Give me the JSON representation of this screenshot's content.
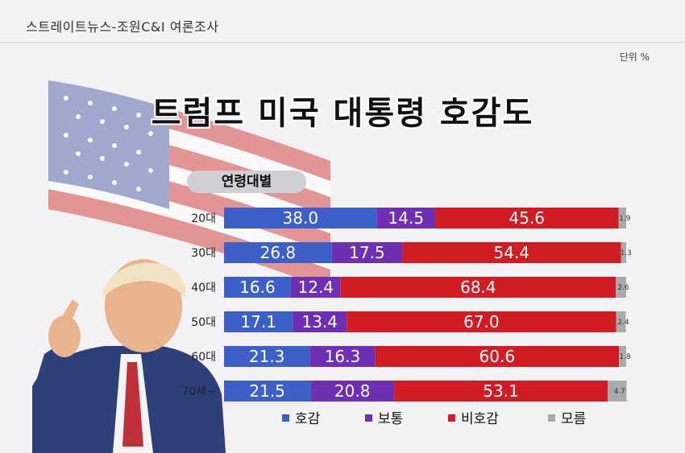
{
  "source": "스트레이트뉴스-조원C&I 여론조사",
  "unit": "단위 %",
  "title": "트럼프 미국 대통령 호감도",
  "group_label": "연령대별",
  "colors": {
    "favorable": "#3d5fc8",
    "neutral": "#6f2fb3",
    "unfavorable": "#d21c24",
    "unknown": "#aaaaaa"
  },
  "chart_data": {
    "type": "bar",
    "stacked": true,
    "orientation": "horizontal",
    "title": "트럼프 미국 대통령 호감도",
    "categories": [
      "20대",
      "30대",
      "40대",
      "50대",
      "60대",
      "70세~"
    ],
    "series": [
      {
        "name": "호감",
        "values": [
          38.0,
          26.8,
          16.6,
          17.1,
          21.3,
          21.5
        ]
      },
      {
        "name": "보통",
        "values": [
          14.5,
          17.5,
          12.4,
          13.4,
          16.3,
          20.8
        ]
      },
      {
        "name": "비호감",
        "values": [
          45.6,
          54.4,
          68.4,
          67.0,
          60.6,
          53.1
        ]
      },
      {
        "name": "모름",
        "values": [
          1.9,
          1.3,
          2.6,
          2.4,
          1.8,
          4.7
        ]
      }
    ],
    "xlim": [
      0,
      100
    ],
    "legend_position": "bottom"
  }
}
